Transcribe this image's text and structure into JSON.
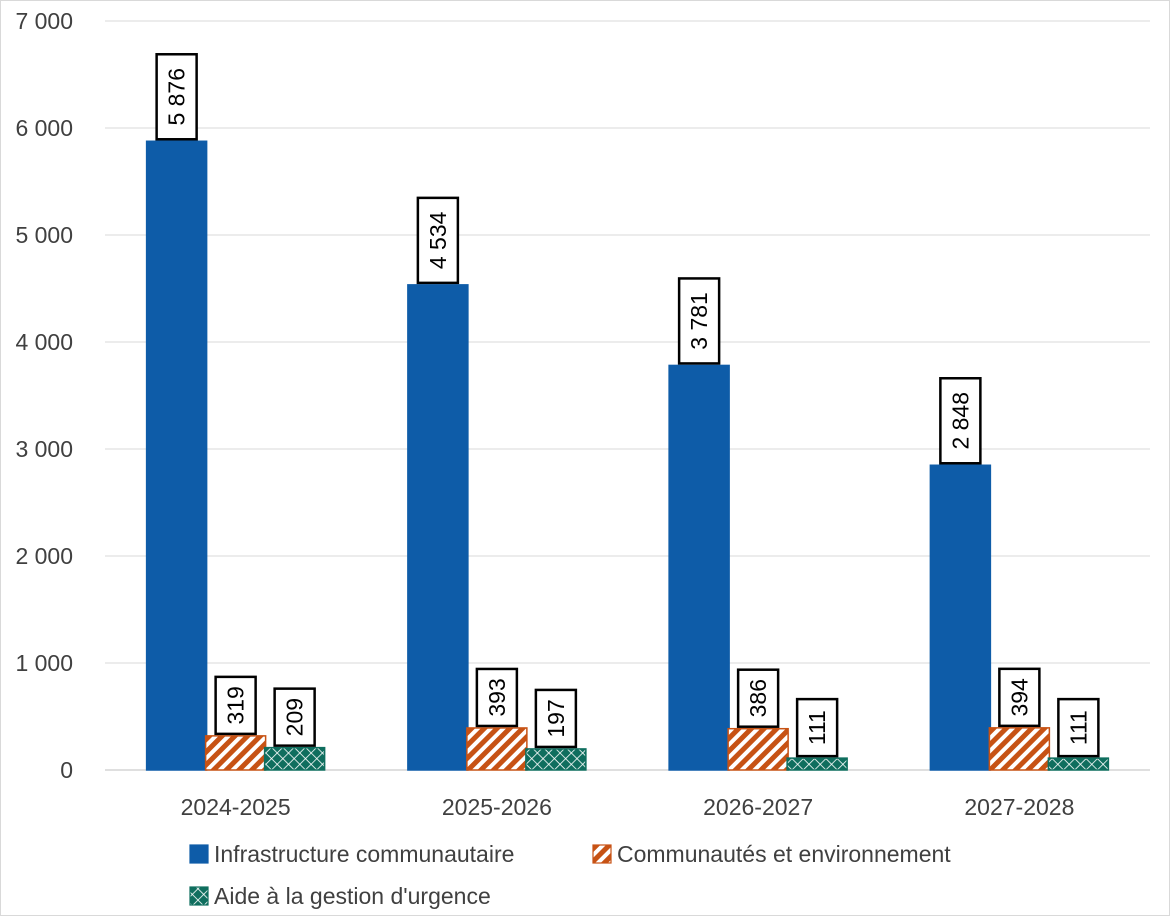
{
  "chart_data": {
    "type": "bar",
    "categories": [
      "2024-2025",
      "2025-2026",
      "2026-2027",
      "2027-2028"
    ],
    "series": [
      {
        "name": "Infrastructure communautaire",
        "values": [
          5876,
          4534,
          3781,
          2848
        ],
        "labels": [
          "5 876",
          "4 534",
          "3 781",
          "2 848"
        ],
        "color": "#0e5ca8",
        "pattern": "solid"
      },
      {
        "name": "Communautés et environnement",
        "values": [
          319,
          393,
          386,
          394
        ],
        "labels": [
          "319",
          "393",
          "386",
          "394"
        ],
        "color": "#c75214",
        "pattern": "diagonal-stripes"
      },
      {
        "name": "Aide à la gestion d'urgence",
        "values": [
          209,
          197,
          111,
          111
        ],
        "labels": [
          "209",
          "197",
          "111",
          "111"
        ],
        "color": "#0f6e5e",
        "pattern": "diamond-grid"
      }
    ],
    "ylim": [
      0,
      7000
    ],
    "yticks": [
      0,
      1000,
      2000,
      3000,
      4000,
      5000,
      6000,
      7000
    ],
    "ytick_labels": [
      "0",
      "1 000",
      "2 000",
      "3 000",
      "4 000",
      "5 000",
      "6 000",
      "7 000"
    ],
    "grid": true,
    "legend_position": "bottom"
  }
}
